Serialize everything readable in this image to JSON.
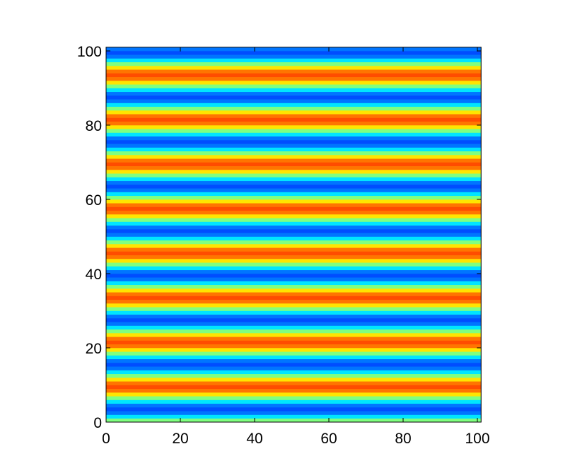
{
  "chart_data": {
    "type": "heatmap",
    "colormap": "jet",
    "clim": [
      0,
      1
    ],
    "z": [
      0.5,
      0.35,
      0.24,
      0.2,
      0.24,
      0.35,
      0.5,
      0.65,
      0.76,
      0.8,
      0.76,
      0.65,
      0.5,
      0.35,
      0.24,
      0.2,
      0.24,
      0.35,
      0.5,
      0.65,
      0.76,
      0.8,
      0.76,
      0.65,
      0.5,
      0.35,
      0.24,
      0.2,
      0.24,
      0.35,
      0.5,
      0.65,
      0.76,
      0.8,
      0.76,
      0.65,
      0.5,
      0.35,
      0.24,
      0.2,
      0.24,
      0.35,
      0.5,
      0.65,
      0.76,
      0.8,
      0.76,
      0.65,
      0.5,
      0.35,
      0.24,
      0.2,
      0.24,
      0.35,
      0.5,
      0.65,
      0.76,
      0.8,
      0.76,
      0.65,
      0.5,
      0.35,
      0.24,
      0.2,
      0.24,
      0.35,
      0.5,
      0.65,
      0.76,
      0.8,
      0.76,
      0.65,
      0.5,
      0.35,
      0.24,
      0.2,
      0.24,
      0.35,
      0.5,
      0.65,
      0.76,
      0.8,
      0.76,
      0.65,
      0.5,
      0.35,
      0.24,
      0.2,
      0.24,
      0.35,
      0.5,
      0.65,
      0.76,
      0.8,
      0.76,
      0.65,
      0.5,
      0.35,
      0.24,
      0.2,
      0.24
    ],
    "xlim": [
      0,
      101
    ],
    "ylim": [
      0,
      101
    ],
    "xticks": [
      0,
      20,
      40,
      60,
      80,
      100
    ],
    "yticks": [
      0,
      20,
      40,
      60,
      80,
      100
    ]
  }
}
